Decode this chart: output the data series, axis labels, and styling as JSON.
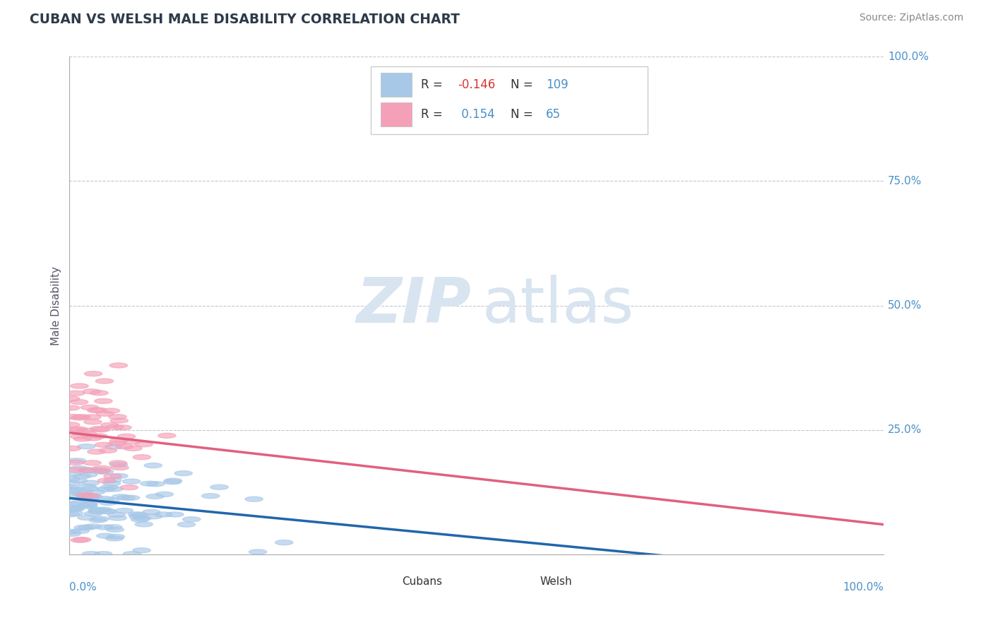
{
  "title": "CUBAN VS WELSH MALE DISABILITY CORRELATION CHART",
  "source": "Source: ZipAtlas.com",
  "ylabel": "Male Disability",
  "r_cubans": -0.146,
  "n_cubans": 109,
  "r_welsh": 0.154,
  "n_welsh": 65,
  "cubans_color": "#a8c8e8",
  "welsh_color": "#f4a0b8",
  "cubans_line_color": "#2166ac",
  "welsh_line_color": "#e06080",
  "background_color": "#ffffff",
  "grid_color": "#c0c8d8",
  "title_color": "#2d3a4a",
  "label_color": "#4a90c8",
  "watermark_color": "#d8e4f0",
  "ytick_values": [
    0.25,
    0.5,
    0.75,
    1.0
  ],
  "ytick_labels": [
    "25.0%",
    "50.0%",
    "75.0%",
    "100.0%"
  ],
  "xmin": 0.0,
  "xmax": 1.0,
  "ymin": 0.0,
  "ymax": 1.0
}
